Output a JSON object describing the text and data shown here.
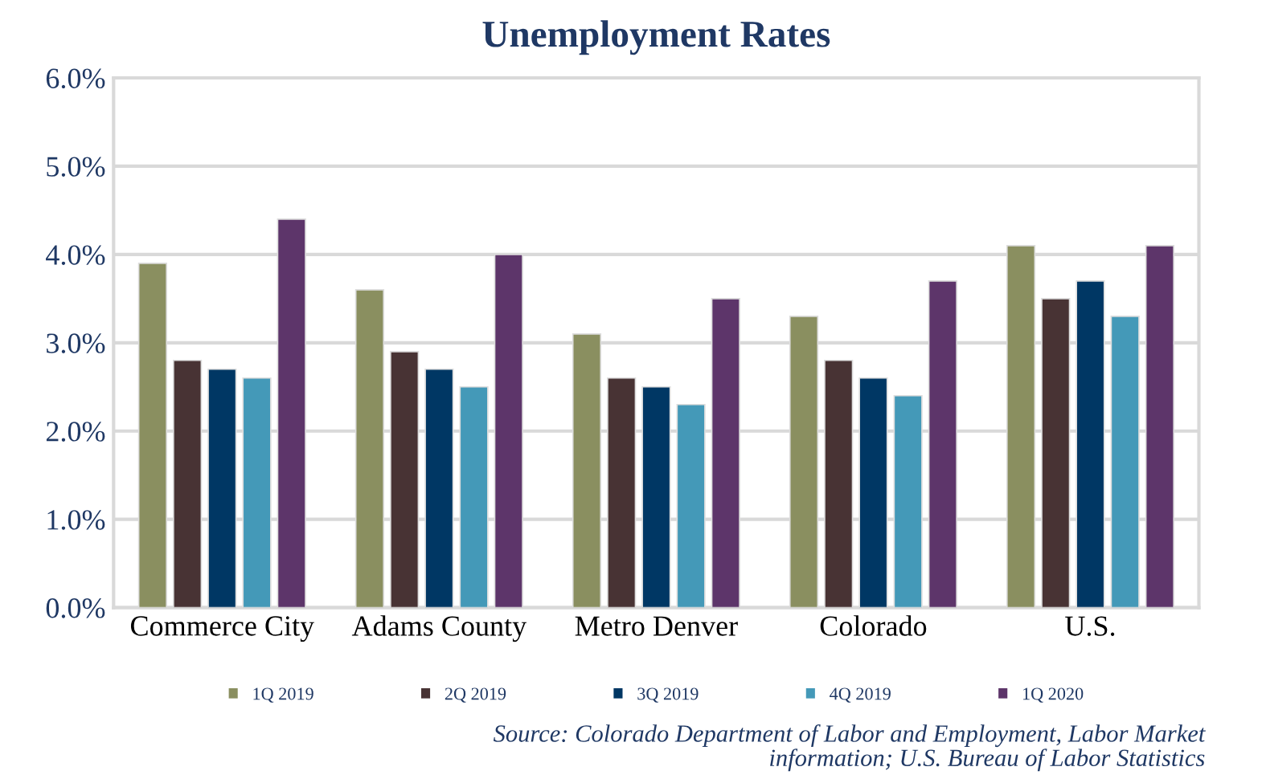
{
  "chart_data": {
    "type": "bar",
    "title": "Unemployment Rates",
    "categories": [
      "Commerce City",
      "Adams County",
      "Metro Denver",
      "Colorado",
      "U.S."
    ],
    "series": [
      {
        "name": "1Q 2019",
        "color": "#8a8f60",
        "values": [
          3.9,
          3.6,
          3.1,
          3.3,
          4.1
        ]
      },
      {
        "name": "2Q 2019",
        "color": "#483334",
        "values": [
          2.8,
          2.9,
          2.6,
          2.8,
          3.5
        ]
      },
      {
        "name": "3Q 2019",
        "color": "#003764",
        "values": [
          2.7,
          2.7,
          2.5,
          2.6,
          3.7
        ]
      },
      {
        "name": "4Q 2019",
        "color": "#4499b8",
        "values": [
          2.6,
          2.5,
          2.3,
          2.4,
          3.3
        ]
      },
      {
        "name": "1Q 2020",
        "color": "#5d356a",
        "values": [
          4.4,
          4.0,
          3.5,
          3.7,
          4.1
        ]
      }
    ],
    "ylim": [
      0,
      6
    ],
    "yticks": [
      {
        "value": 0,
        "label": "0.0%"
      },
      {
        "value": 1,
        "label": "1.0%"
      },
      {
        "value": 2,
        "label": "2.0%"
      },
      {
        "value": 3,
        "label": "3.0%"
      },
      {
        "value": 4,
        "label": "4.0%"
      },
      {
        "value": 5,
        "label": "5.0%"
      },
      {
        "value": 6,
        "label": "6.0%"
      }
    ],
    "grid": "y",
    "legend": "bottom",
    "annotations": [
      "Source: Colorado Department of Labor and Employment, Labor Market\ninformation; U.S. Bureau of Labor Statistics"
    ]
  }
}
